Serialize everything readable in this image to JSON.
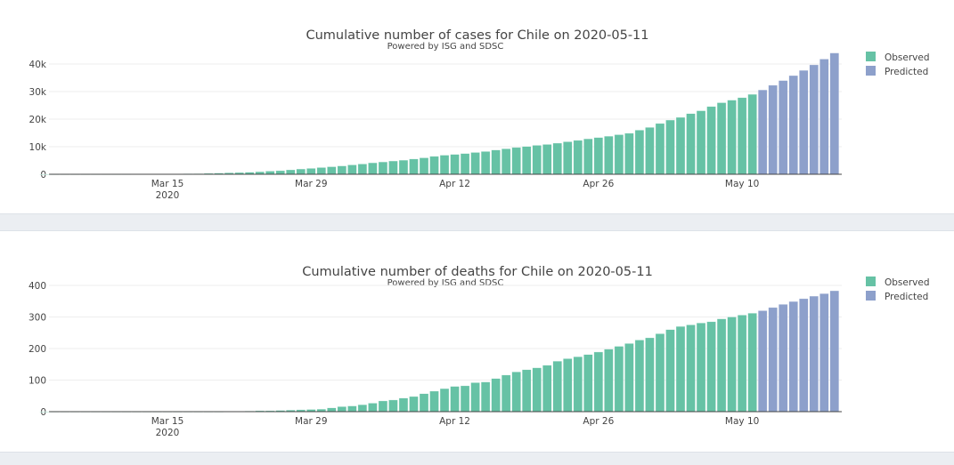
{
  "chart_data": [
    {
      "type": "bar",
      "title": "Cumulative number of cases for Chile on 2020-05-11",
      "subtitle": "Powered by ISG and SDSC",
      "start_date": "2020-03-03",
      "x_ticks": [
        {
          "label": "Mar 15",
          "sub": "2020",
          "day": 12
        },
        {
          "label": "Mar 29",
          "day": 26
        },
        {
          "label": "Apr 12",
          "day": 40
        },
        {
          "label": "Apr 26",
          "day": 54
        },
        {
          "label": "May 10",
          "day": 68
        }
      ],
      "y_ticks": [
        {
          "label": "0",
          "value": 0
        },
        {
          "label": "10k",
          "value": 10000
        },
        {
          "label": "20k",
          "value": 20000
        },
        {
          "label": "30k",
          "value": 30000
        },
        {
          "label": "40k",
          "value": 40000
        }
      ],
      "ylim": [
        0,
        40000
      ],
      "grid": true,
      "legend_position": "top-right",
      "series": [
        {
          "name": "Observed",
          "color": "#66c2a5",
          "start_day": 0,
          "values": [
            1,
            3,
            4,
            5,
            7,
            10,
            13,
            17,
            23,
            33,
            43,
            61,
            75,
            156,
            201,
            238,
            342,
            434,
            537,
            632,
            746,
            922,
            1142,
            1306,
            1610,
            1909,
            2139,
            2449,
            2738,
            3031,
            3404,
            3737,
            4161,
            4471,
            4815,
            5116,
            5546,
            5972,
            6501,
            6927,
            7213,
            7525,
            7917,
            8273,
            8807,
            9252,
            9730,
            10088,
            10505,
            10832,
            11296,
            11812,
            12306,
            12858,
            13331,
            13813,
            14365,
            14885,
            16023,
            17008,
            18435,
            19663,
            20643,
            22016,
            23048,
            24581,
            25972,
            26900,
            27800,
            29000
          ]
        },
        {
          "name": "Predicted",
          "color": "#8da0cb",
          "start_day": 70,
          "values": [
            30600,
            32300,
            34000,
            35800,
            37700,
            39700,
            41800,
            44000
          ]
        }
      ]
    },
    {
      "type": "bar",
      "title": "Cumulative number of deaths for Chile on 2020-05-11",
      "subtitle": "Powered by ISG and SDSC",
      "start_date": "2020-03-03",
      "x_ticks": [
        {
          "label": "Mar 15",
          "sub": "2020",
          "day": 12
        },
        {
          "label": "Mar 29",
          "day": 26
        },
        {
          "label": "Apr 12",
          "day": 40
        },
        {
          "label": "Apr 26",
          "day": 54
        },
        {
          "label": "May 10",
          "day": 68
        }
      ],
      "y_ticks": [
        {
          "label": "0",
          "value": 0
        },
        {
          "label": "100",
          "value": 100
        },
        {
          "label": "200",
          "value": 200
        },
        {
          "label": "300",
          "value": 300
        },
        {
          "label": "400",
          "value": 400
        }
      ],
      "ylim": [
        0,
        400
      ],
      "grid": true,
      "legend_position": "top-right",
      "series": [
        {
          "name": "Observed",
          "color": "#66c2a5",
          "start_day": 0,
          "values": [
            0,
            0,
            0,
            0,
            0,
            0,
            0,
            0,
            0,
            0,
            0,
            0,
            0,
            0,
            0,
            0,
            0,
            0,
            1,
            1,
            2,
            3,
            3,
            4,
            5,
            6,
            7,
            8,
            12,
            16,
            18,
            22,
            27,
            34,
            37,
            43,
            48,
            57,
            65,
            73,
            80,
            82,
            92,
            94,
            105,
            116,
            126,
            133,
            139,
            147,
            160,
            168,
            174,
            181,
            189,
            198,
            207,
            216,
            227,
            234,
            247,
            260,
            270,
            275,
            281,
            285,
            294,
            300,
            306,
            312
          ]
        },
        {
          "name": "Predicted",
          "color": "#8da0cb",
          "start_day": 70,
          "values": [
            320,
            330,
            340,
            349,
            358,
            366,
            374,
            383
          ]
        }
      ]
    }
  ]
}
